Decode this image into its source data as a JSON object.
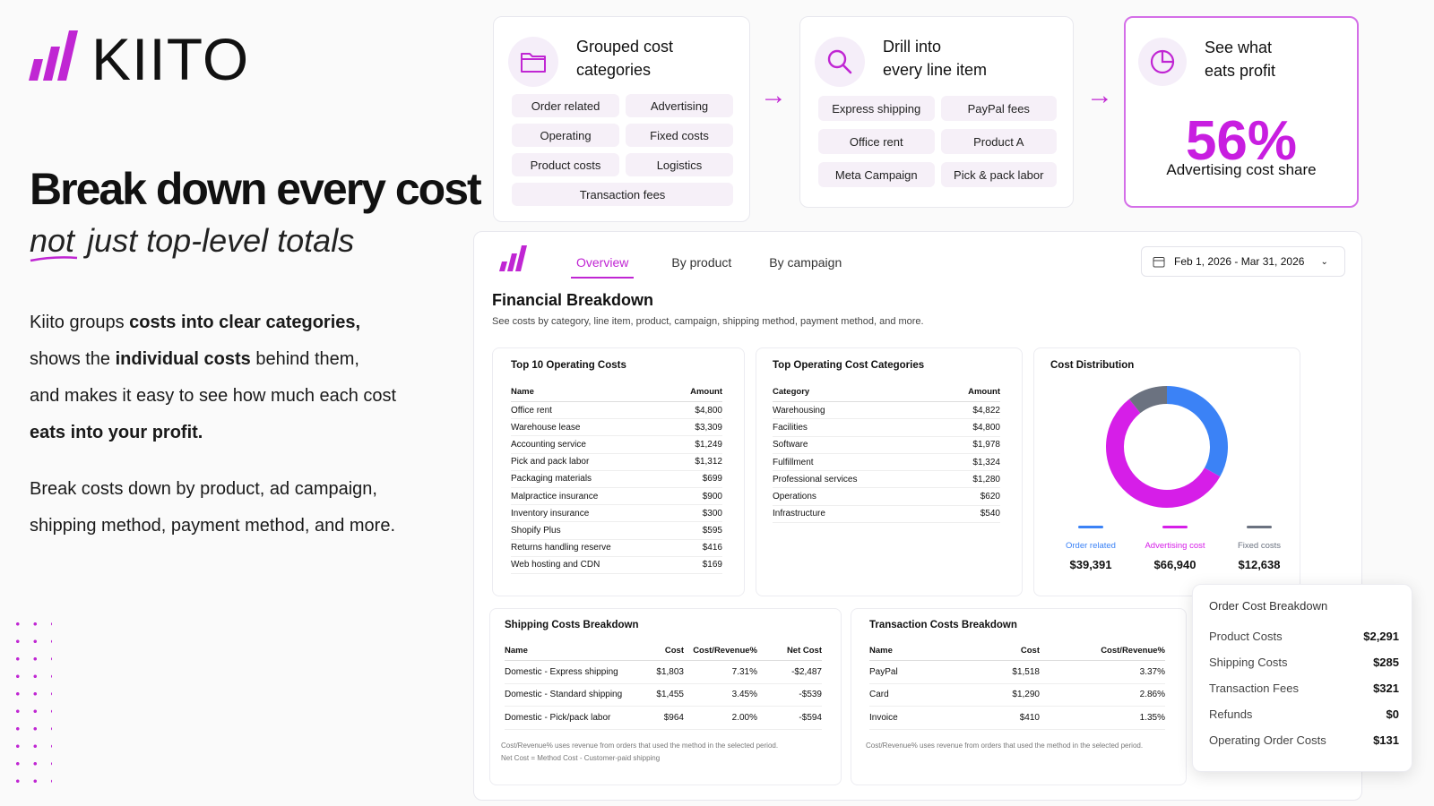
{
  "brand": "KIITO",
  "hero": {
    "title": "Break down every cost",
    "subtitle": [
      "not",
      "just top-level totals"
    ],
    "intro": [
      [
        "Kiito groups ",
        "costs into clear categories,"
      ],
      [
        "shows the ",
        "individual costs",
        " behind them,"
      ],
      [
        "and makes it easy to see how much each cost"
      ],
      [
        "eats into your profit."
      ]
    ],
    "outro": [
      "Break costs down by product, ad campaign,",
      "shipping method, payment method, and more."
    ]
  },
  "features": [
    {
      "title": [
        "Grouped cost",
        "categories"
      ],
      "tags": [
        "Order related",
        "Advertising",
        "Operating",
        "Fixed costs",
        "Product costs",
        "Logistics",
        "Transaction fees"
      ]
    },
    {
      "title": [
        "Drill into",
        "every line item"
      ],
      "tags": [
        "Express shipping",
        "PayPal fees",
        "Office rent",
        "Product A",
        "Meta Campaign",
        "Pick & pack labor"
      ]
    },
    {
      "title": [
        "See what",
        "eats profit"
      ],
      "stat": "56%",
      "stat_label": "Advertising cost share"
    }
  ],
  "dashboard": {
    "tabs": [
      "Overview",
      "By product",
      "By campaign"
    ],
    "date_range": "Feb 1, 2026 - Mar 31, 2026",
    "title": "Financial Breakdown",
    "subtitle": "See costs by category, line item, product, campaign, shipping method, payment method, and more.",
    "top_costs": {
      "title": "Top 10 Operating Costs",
      "columns": [
        "Name",
        "Amount"
      ],
      "rows": [
        [
          "Office rent",
          "$4,800"
        ],
        [
          "Warehouse lease",
          "$3,309"
        ],
        [
          "Accounting service",
          "$1,249"
        ],
        [
          "Pick and pack labor",
          "$1,312"
        ],
        [
          "Packaging materials",
          "$699"
        ],
        [
          "Malpractice insurance",
          "$900"
        ],
        [
          "Inventory insurance",
          "$300"
        ],
        [
          "Shopify Plus",
          "$595"
        ],
        [
          "Returns handling reserve",
          "$416"
        ],
        [
          "Web hosting and CDN",
          "$169"
        ]
      ]
    },
    "top_categories": {
      "title": "Top Operating Cost Categories",
      "columns": [
        "Category",
        "Amount"
      ],
      "rows": [
        [
          "Warehousing",
          "$4,822"
        ],
        [
          "Facilities",
          "$4,800"
        ],
        [
          "Software",
          "$1,978"
        ],
        [
          "Fulfillment",
          "$1,324"
        ],
        [
          "Professional services",
          "$1,280"
        ],
        [
          "Operations",
          "$620"
        ],
        [
          "Infrastructure",
          "$540"
        ]
      ]
    },
    "cost_distribution": {
      "title": "Cost Distribution",
      "categories": [
        "Order related",
        "Advertising cost",
        "Fixed costs"
      ],
      "values": [
        39391,
        66940,
        12638
      ],
      "value_labels": [
        "$39,391",
        "$66,940",
        "$12,638"
      ],
      "colors": [
        "#3b82f6",
        "#d61ee8",
        "#6b7280"
      ]
    },
    "shipping": {
      "title": "Shipping Costs Breakdown",
      "columns": [
        "Name",
        "Cost",
        "Cost/Revenue%",
        "Net Cost"
      ],
      "rows": [
        [
          "Domestic - Express shipping",
          "$1,803",
          "7.31%",
          "-$2,487"
        ],
        [
          "Domestic - Standard shipping",
          "$1,455",
          "3.45%",
          "-$539"
        ],
        [
          "Domestic - Pick/pack labor",
          "$964",
          "2.00%",
          "-$594"
        ]
      ],
      "notes": [
        "Cost/Revenue% uses revenue from orders that used the method in the selected period.",
        "Net Cost = Method Cost - Customer-paid shipping"
      ]
    },
    "transactions": {
      "title": "Transaction Costs Breakdown",
      "columns": [
        "Name",
        "Cost",
        "Cost/Revenue%"
      ],
      "rows": [
        [
          "PayPal",
          "$1,518",
          "3.37%"
        ],
        [
          "Card",
          "$1,290",
          "2.86%"
        ],
        [
          "Invoice",
          "$410",
          "1.35%"
        ]
      ],
      "notes": [
        "Cost/Revenue% uses revenue from orders that used the method in the selected period."
      ]
    },
    "order_breakdown": {
      "title": "Order Cost Breakdown",
      "rows": [
        [
          "Product Costs",
          "$2,291"
        ],
        [
          "Shipping Costs",
          "$285"
        ],
        [
          "Transaction Fees",
          "$321"
        ],
        [
          "Refunds",
          "$0"
        ],
        [
          "Operating Order Costs",
          "$131"
        ]
      ]
    }
  }
}
